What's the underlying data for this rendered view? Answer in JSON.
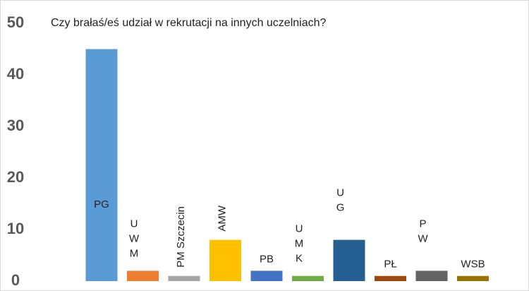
{
  "chart_data": {
    "type": "bar",
    "title": "Czy brałaś/eś udział w rekrutacji na innych uczelniach?",
    "categories": [
      "PG",
      "UWM",
      "PM Szczecin",
      "AMW",
      "PB",
      "UMK",
      "UG",
      "PŁ",
      "PW",
      "WSB"
    ],
    "values": [
      45,
      2,
      1,
      8,
      2,
      1,
      8,
      1,
      2,
      1
    ],
    "colors": [
      "#5b9bd5",
      "#ed7d31",
      "#a5a5a5",
      "#ffc000",
      "#4472c4",
      "#70ad47",
      "#255e91",
      "#9e480e",
      "#636363",
      "#997300"
    ],
    "ylim": [
      0,
      50
    ],
    "yticks": [
      0,
      10,
      20,
      30,
      40,
      50
    ],
    "grid": false
  }
}
